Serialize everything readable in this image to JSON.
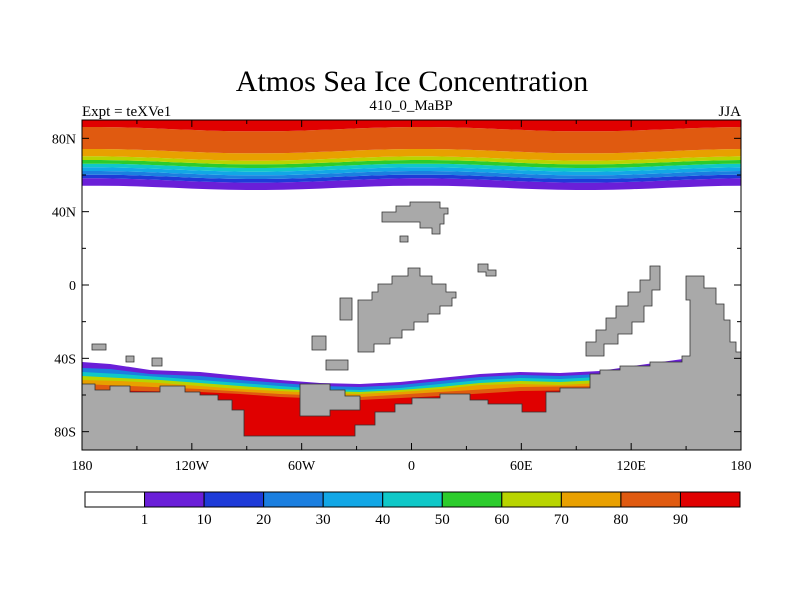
{
  "chart_data": {
    "type": "heatmap",
    "title": "Atmos Sea Ice Concentration",
    "left_label": "Expt = teXVe1",
    "center_label": "410_0_MaBP",
    "right_label": "JJA",
    "x_axis": {
      "range": [
        -180,
        180
      ],
      "ticks": [
        -180,
        -120,
        -60,
        0,
        60,
        120,
        180
      ],
      "tick_labels": [
        "180",
        "120W",
        "60W",
        "0",
        "60E",
        "120E",
        "180"
      ]
    },
    "y_axis": {
      "range": [
        -90,
        90
      ],
      "ticks": [
        80,
        40,
        0,
        -40,
        -80
      ],
      "tick_labels": [
        "80N",
        "40N",
        "0",
        "40S",
        "80S"
      ]
    },
    "colorbar": {
      "levels": [
        1,
        10,
        20,
        30,
        40,
        50,
        60,
        70,
        80,
        90
      ],
      "labels": [
        "1",
        "10",
        "20",
        "30",
        "40",
        "50",
        "60",
        "70",
        "80",
        "90"
      ],
      "colors": [
        "#ffffff",
        "#6a1fd8",
        "#1e3bd8",
        "#1b7fe0",
        "#12a7e6",
        "#0fc8c8",
        "#2ccc2c",
        "#b8d400",
        "#e8a000",
        "#e05a10",
        "#e00000"
      ]
    },
    "northern_ice_bands": [
      {
        "range": "1-10",
        "lat": [
          53,
          57
        ],
        "color": "#6a1fd8"
      },
      {
        "range": "10-20",
        "lat": [
          57,
          59
        ],
        "color": "#1e3bd8"
      },
      {
        "range": "20-30",
        "lat": [
          59,
          61
        ],
        "color": "#1b7fe0"
      },
      {
        "range": "30-40",
        "lat": [
          61,
          63
        ],
        "color": "#12a7e6"
      },
      {
        "range": "40-50",
        "lat": [
          63,
          65
        ],
        "color": "#0fc8c8"
      },
      {
        "range": "50-60",
        "lat": [
          65,
          67
        ],
        "color": "#2ccc2c"
      },
      {
        "range": "60-70",
        "lat": [
          67,
          69
        ],
        "color": "#b8d400"
      },
      {
        "range": "70-80",
        "lat": [
          69,
          73
        ],
        "color": "#e8a000"
      },
      {
        "range": "80-90",
        "lat": [
          73,
          85
        ],
        "color": "#e05a10"
      },
      {
        "range": ">90",
        "lat": [
          85,
          90
        ],
        "color": "#e00000"
      }
    ],
    "land_color": "#a9a9a9"
  }
}
